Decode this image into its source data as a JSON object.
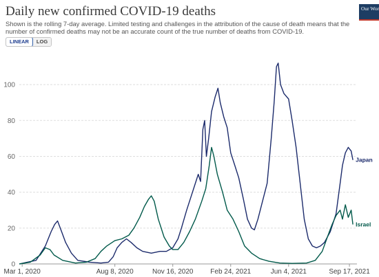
{
  "title": "Daily new confirmed COVID-19 deaths",
  "subtitle": "Shown is the rolling 7-day average. Limited testing and challenges in the attribution of the cause of death means that the number of confirmed deaths may not be an accurate count of the true number of deaths from COVID-19.",
  "logo": {
    "text": "Our World in Data",
    "bg_color": "#1d3d63",
    "accent_color": "#c0392b"
  },
  "scale_toggle": {
    "options": [
      "LINEAR",
      "LOG"
    ],
    "selected": "LINEAR"
  },
  "colors": {
    "japan": "#1b2a6b",
    "israel": "#00594a",
    "grid": "#dddddd"
  },
  "chart_data": {
    "type": "line",
    "title": "Daily new confirmed COVID-19 deaths",
    "xlabel": "",
    "ylabel": "",
    "ylim": [
      0,
      115
    ],
    "y_ticks": [
      0,
      20,
      40,
      60,
      80,
      100
    ],
    "x_range": [
      "2020-02-25",
      "2021-09-30"
    ],
    "x_ticks": [
      {
        "date": "2020-03-01",
        "label": "Mar 1, 2020"
      },
      {
        "date": "2020-08-08",
        "label": "Aug 8, 2020"
      },
      {
        "date": "2020-11-16",
        "label": "Nov 16, 2020"
      },
      {
        "date": "2021-02-24",
        "label": "Feb 24, 2021"
      },
      {
        "date": "2021-06-04",
        "label": "Jun 4, 2021"
      },
      {
        "date": "2021-09-17",
        "label": "Sep 17, 2021"
      }
    ],
    "grid": true,
    "legend": "end-of-line labels",
    "series": [
      {
        "name": "Japan",
        "color": "#1b2a6b",
        "points": [
          [
            "2020-02-25",
            0
          ],
          [
            "2020-03-10",
            1
          ],
          [
            "2020-03-25",
            2
          ],
          [
            "2020-04-10",
            10
          ],
          [
            "2020-04-20",
            18
          ],
          [
            "2020-04-26",
            22
          ],
          [
            "2020-05-01",
            24
          ],
          [
            "2020-05-08",
            18
          ],
          [
            "2020-05-15",
            12
          ],
          [
            "2020-05-25",
            6
          ],
          [
            "2020-06-05",
            2
          ],
          [
            "2020-06-25",
            1
          ],
          [
            "2020-07-15",
            0.5
          ],
          [
            "2020-07-28",
            1
          ],
          [
            "2020-08-05",
            4
          ],
          [
            "2020-08-12",
            9
          ],
          [
            "2020-08-20",
            12
          ],
          [
            "2020-08-28",
            14
          ],
          [
            "2020-09-05",
            12
          ],
          [
            "2020-09-15",
            9
          ],
          [
            "2020-09-25",
            7
          ],
          [
            "2020-10-10",
            6
          ],
          [
            "2020-10-25",
            7
          ],
          [
            "2020-11-05",
            7
          ],
          [
            "2020-11-16",
            9
          ],
          [
            "2020-11-25",
            14
          ],
          [
            "2020-12-01",
            20
          ],
          [
            "2020-12-10",
            30
          ],
          [
            "2020-12-20",
            40
          ],
          [
            "2020-12-25",
            45
          ],
          [
            "2020-12-30",
            50
          ],
          [
            "2021-01-03",
            46
          ],
          [
            "2021-01-07",
            75
          ],
          [
            "2021-01-10",
            80
          ],
          [
            "2021-01-13",
            60
          ],
          [
            "2021-01-17",
            70
          ],
          [
            "2021-01-22",
            85
          ],
          [
            "2021-01-28",
            93
          ],
          [
            "2021-02-02",
            98
          ],
          [
            "2021-02-06",
            90
          ],
          [
            "2021-02-12",
            82
          ],
          [
            "2021-02-18",
            76
          ],
          [
            "2021-02-24",
            62
          ],
          [
            "2021-03-03",
            55
          ],
          [
            "2021-03-10",
            48
          ],
          [
            "2021-03-18",
            36
          ],
          [
            "2021-03-25",
            25
          ],
          [
            "2021-04-01",
            20
          ],
          [
            "2021-04-06",
            19
          ],
          [
            "2021-04-12",
            25
          ],
          [
            "2021-04-20",
            35
          ],
          [
            "2021-04-28",
            45
          ],
          [
            "2021-05-05",
            70
          ],
          [
            "2021-05-10",
            90
          ],
          [
            "2021-05-14",
            110
          ],
          [
            "2021-05-17",
            112
          ],
          [
            "2021-05-21",
            100
          ],
          [
            "2021-05-27",
            95
          ],
          [
            "2021-06-04",
            92
          ],
          [
            "2021-06-10",
            80
          ],
          [
            "2021-06-17",
            65
          ],
          [
            "2021-06-24",
            45
          ],
          [
            "2021-07-01",
            25
          ],
          [
            "2021-07-08",
            14
          ],
          [
            "2021-07-15",
            10
          ],
          [
            "2021-07-22",
            9
          ],
          [
            "2021-07-29",
            10
          ],
          [
            "2021-08-05",
            12
          ],
          [
            "2021-08-15",
            18
          ],
          [
            "2021-08-25",
            28
          ],
          [
            "2021-09-01",
            45
          ],
          [
            "2021-09-05",
            55
          ],
          [
            "2021-09-10",
            62
          ],
          [
            "2021-09-15",
            65
          ],
          [
            "2021-09-20",
            63
          ],
          [
            "2021-09-23",
            58
          ]
        ]
      },
      {
        "name": "Israel",
        "color": "#00594a",
        "points": [
          [
            "2020-02-25",
            0
          ],
          [
            "2020-03-15",
            1
          ],
          [
            "2020-04-01",
            5
          ],
          [
            "2020-04-10",
            9
          ],
          [
            "2020-04-18",
            8
          ],
          [
            "2020-04-25",
            5
          ],
          [
            "2020-05-10",
            2
          ],
          [
            "2020-06-01",
            0.5
          ],
          [
            "2020-06-20",
            1
          ],
          [
            "2020-07-05",
            3
          ],
          [
            "2020-07-15",
            7
          ],
          [
            "2020-07-25",
            10
          ],
          [
            "2020-08-08",
            13
          ],
          [
            "2020-08-20",
            14
          ],
          [
            "2020-09-01",
            16
          ],
          [
            "2020-09-10",
            20
          ],
          [
            "2020-09-20",
            26
          ],
          [
            "2020-09-28",
            32
          ],
          [
            "2020-10-05",
            36
          ],
          [
            "2020-10-10",
            38
          ],
          [
            "2020-10-15",
            35
          ],
          [
            "2020-10-22",
            25
          ],
          [
            "2020-11-01",
            15
          ],
          [
            "2020-11-10",
            10
          ],
          [
            "2020-11-16",
            8
          ],
          [
            "2020-11-25",
            8
          ],
          [
            "2020-12-05",
            12
          ],
          [
            "2020-12-15",
            18
          ],
          [
            "2020-12-25",
            25
          ],
          [
            "2021-01-05",
            35
          ],
          [
            "2021-01-12",
            42
          ],
          [
            "2021-01-18",
            55
          ],
          [
            "2021-01-22",
            65
          ],
          [
            "2021-01-26",
            60
          ],
          [
            "2021-02-01",
            50
          ],
          [
            "2021-02-10",
            40
          ],
          [
            "2021-02-18",
            30
          ],
          [
            "2021-02-28",
            25
          ],
          [
            "2021-03-10",
            18
          ],
          [
            "2021-03-20",
            10
          ],
          [
            "2021-04-01",
            6
          ],
          [
            "2021-04-15",
            3
          ],
          [
            "2021-05-01",
            1.5
          ],
          [
            "2021-05-20",
            0.5
          ],
          [
            "2021-06-10",
            0.3
          ],
          [
            "2021-07-05",
            0.5
          ],
          [
            "2021-07-20",
            2
          ],
          [
            "2021-08-01",
            7
          ],
          [
            "2021-08-10",
            15
          ],
          [
            "2021-08-18",
            22
          ],
          [
            "2021-08-25",
            27
          ],
          [
            "2021-09-01",
            30
          ],
          [
            "2021-09-05",
            25
          ],
          [
            "2021-09-10",
            33
          ],
          [
            "2021-09-15",
            26
          ],
          [
            "2021-09-20",
            30
          ],
          [
            "2021-09-23",
            22
          ]
        ]
      }
    ]
  }
}
